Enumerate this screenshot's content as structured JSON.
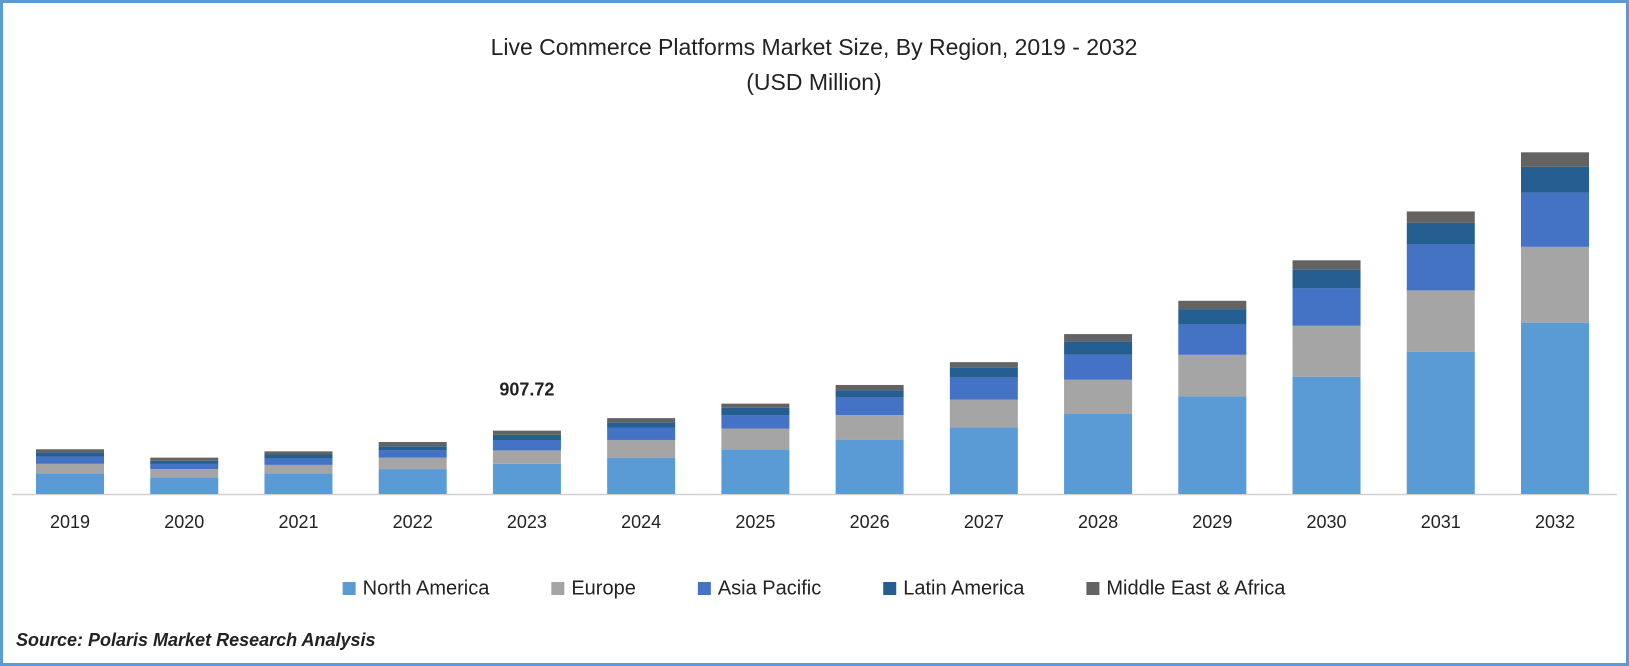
{
  "chart_data": {
    "type": "stacked_bar",
    "title": "Live Commerce Platforms Market Size, By Region, 2019 - 2032",
    "subtitle": "(USD Million)",
    "categories": [
      "2019",
      "2020",
      "2021",
      "2022",
      "2023",
      "2024",
      "2025",
      "2026",
      "2027",
      "2028",
      "2029",
      "2030",
      "2031",
      "2032"
    ],
    "series": [
      {
        "name": "North America",
        "color": "#5b9bd5",
        "values": [
          298,
          238,
          298,
          357,
          431.72,
          521,
          640,
          774,
          952,
          1146,
          1399,
          1681,
          2039,
          2455
        ]
      },
      {
        "name": "Europe",
        "color": "#a5a5a5",
        "values": [
          134,
          119,
          119,
          164,
          193,
          253,
          298,
          357,
          402,
          491,
          595,
          729,
          878,
          1086
        ]
      },
      {
        "name": "Asia Pacific",
        "color": "#4472c4",
        "values": [
          104,
          74,
          89,
          104,
          149,
          179,
          193,
          253,
          312,
          357,
          432,
          536,
          655,
          774
        ]
      },
      {
        "name": "Latin America",
        "color": "#255e91",
        "values": [
          60,
          45,
          60,
          60,
          74,
          74,
          104,
          104,
          149,
          193,
          223,
          268,
          312,
          372
        ]
      },
      {
        "name": "Middle East & Africa",
        "color": "#636363",
        "values": [
          45,
          45,
          45,
          60,
          60,
          60,
          60,
          74,
          74,
          104,
          119,
          134,
          164,
          208
        ]
      }
    ],
    "annotation": {
      "text": "907.72",
      "x": "2023"
    },
    "ylim": [
      0,
      5000
    ],
    "legend": "bottom",
    "source": "Source: Polaris Market Research Analysis"
  }
}
